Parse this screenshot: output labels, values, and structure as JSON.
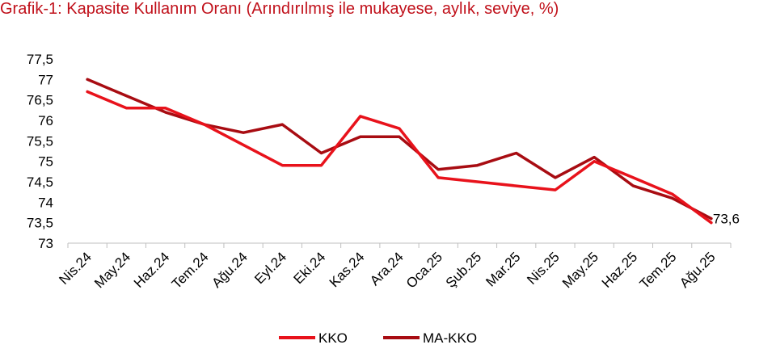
{
  "chart_data": {
    "type": "line",
    "title": "Grafik-1: Kapasite Kullanım Oranı (Arındırılmış ile mukayese, aylık, seviye, %)",
    "xlabel": "",
    "ylabel": "",
    "ylim": [
      73,
      77.5
    ],
    "yticks": [
      "73",
      "73,5",
      "74",
      "74,5",
      "75",
      "75,5",
      "76",
      "76,5",
      "77",
      "77,5"
    ],
    "categories": [
      "Nis.24",
      "May.24",
      "Haz.24",
      "Tem.24",
      "Ağu.24",
      "Eyl.24",
      "Eki.24",
      "Kas.24",
      "Ara.24",
      "Oca.25",
      "Şub.25",
      "Mar.25",
      "Nis.25",
      "May.25",
      "Haz.25",
      "Tem.25",
      "Ağu.25"
    ],
    "series": [
      {
        "name": "KKO",
        "color": "#e8121b",
        "values": [
          76.7,
          76.3,
          76.3,
          75.9,
          75.4,
          74.9,
          74.9,
          76.1,
          75.8,
          74.6,
          74.5,
          74.4,
          74.3,
          75.0,
          74.6,
          74.2,
          73.5
        ]
      },
      {
        "name": "MA-KKO",
        "color": "#a80c12",
        "values": [
          77.0,
          76.6,
          76.2,
          75.9,
          75.7,
          75.9,
          75.2,
          75.6,
          75.6,
          74.8,
          74.9,
          75.2,
          74.6,
          75.1,
          74.4,
          74.1,
          73.6
        ]
      }
    ],
    "data_labels": [
      {
        "series": "MA-KKO",
        "index": 16,
        "text": "73,6"
      }
    ],
    "legend_position": "bottom",
    "grid": false
  }
}
